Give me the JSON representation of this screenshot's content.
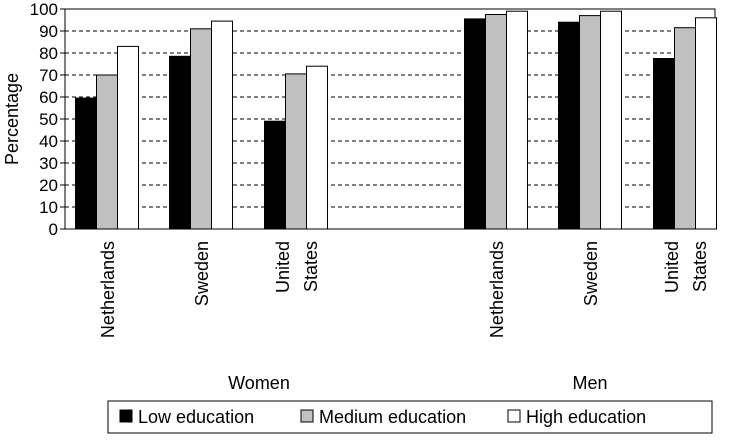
{
  "chart_data": {
    "type": "bar",
    "title": "",
    "xlabel": "",
    "ylabel": "Percentage",
    "ylim": [
      0,
      100
    ],
    "yticks": [
      0,
      10,
      20,
      30,
      40,
      50,
      60,
      70,
      80,
      90,
      100
    ],
    "grid": "horizontal-dashed",
    "legend_position": "bottom",
    "groups": [
      {
        "name": "Women",
        "categories": [
          [
            "Netherlands"
          ],
          [
            "Sweden"
          ],
          [
            "United",
            "States"
          ]
        ]
      },
      {
        "name": "Men",
        "categories": [
          [
            "Netherlands"
          ],
          [
            "Sweden"
          ],
          [
            "United",
            "States"
          ]
        ]
      }
    ],
    "series": [
      {
        "name": "Low education",
        "color": "#000000",
        "values": [
          59.5,
          78.5,
          49,
          95.5,
          94,
          77.5
        ]
      },
      {
        "name": "Medium education",
        "color": "#c0c0c0",
        "values": [
          70,
          91,
          70.5,
          97.5,
          97,
          91.5
        ]
      },
      {
        "name": "High education",
        "color": "#ffffff",
        "values": [
          83,
          94.5,
          74,
          99,
          99,
          96
        ]
      }
    ]
  }
}
